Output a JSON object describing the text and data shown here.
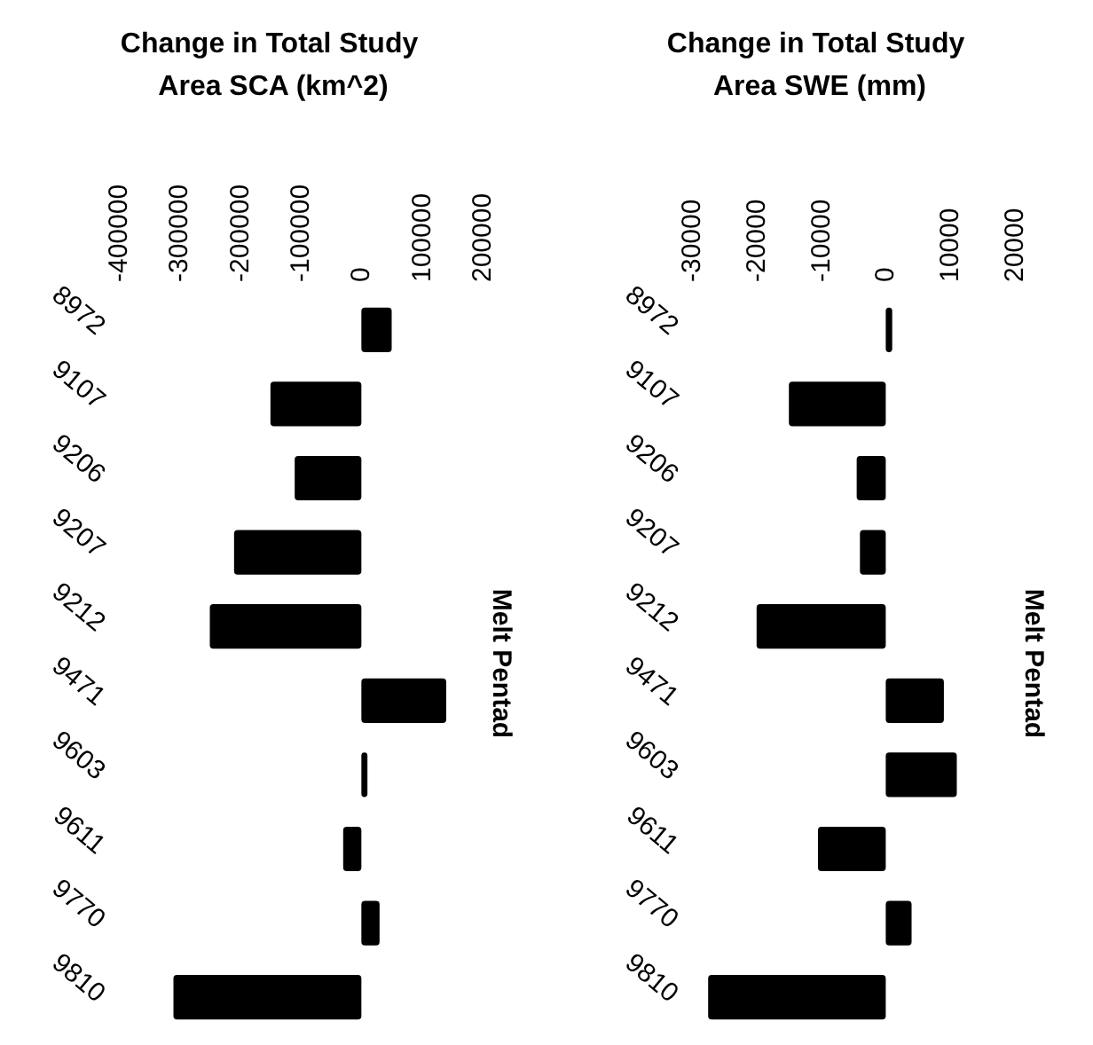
{
  "chart_data": [
    {
      "type": "bar",
      "orientation": "horizontal",
      "xlabel": "Change in Total Study Area SCA (km^2)",
      "ylabel": "Melt Pentad",
      "categories": [
        "8972",
        "9107",
        "9206",
        "9207",
        "9212",
        "9471",
        "9603",
        "9611",
        "9770",
        "9810"
      ],
      "values": [
        50000,
        -150000,
        -110000,
        -210000,
        -250000,
        140000,
        10000,
        -30000,
        30000,
        -310000
      ],
      "color": "#000000",
      "xlim": [
        -400000,
        200000
      ],
      "xticks": [
        -400000,
        -300000,
        -200000,
        -100000,
        0,
        100000,
        200000
      ]
    },
    {
      "type": "bar",
      "orientation": "horizontal",
      "xlabel": "Change in Total Study Area SWE (mm)",
      "ylabel": "Melt Pentad",
      "categories": [
        "8972",
        "9107",
        "9206",
        "9207",
        "9212",
        "9471",
        "9603",
        "9611",
        "9770",
        "9810"
      ],
      "values": [
        1000,
        -15000,
        -4500,
        -4000,
        -20000,
        9000,
        11000,
        -10500,
        4000,
        -27500
      ],
      "color": "#000000",
      "xlim": [
        -30000,
        20000
      ],
      "xticks": [
        -30000,
        -20000,
        -10000,
        0,
        10000,
        20000
      ]
    }
  ]
}
